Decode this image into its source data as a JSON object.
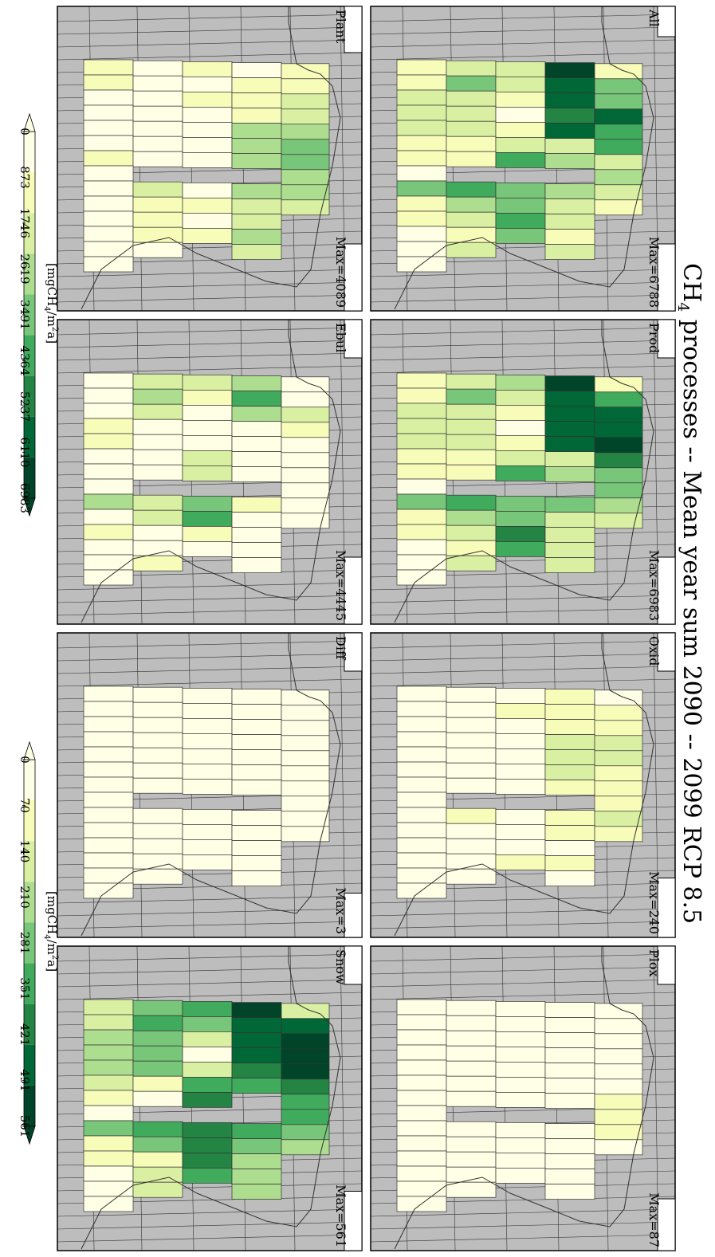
{
  "title": "CH₄ processes -- Mean year sum 2090 -- 2099 RCP 8.5",
  "title_parts": {
    "pre": "CH",
    "sub": "4",
    "post": " processes -- Mean year sum 2090 -- 2099 RCP 8.5"
  },
  "colors": {
    "ocean": "#bdbdbd",
    "frame": "#000000",
    "grid": "#333333",
    "ramp": [
      "#ffffe5",
      "#f7fcb9",
      "#d9f0a3",
      "#addd8e",
      "#78c679",
      "#41ab5d",
      "#238443",
      "#006837",
      "#004529"
    ]
  },
  "chart_data": [
    {
      "type": "heatmap",
      "panels": [
        {
          "name": "All",
          "max_label": "Max=6788",
          "max": 6788,
          "scale": "a",
          "grid": [
            [
              1400,
              2200,
              1800,
              6400,
              800
            ],
            [
              1500,
              3700,
              2100,
              5600,
              3300
            ],
            [
              2000,
              2300,
              1500,
              5500,
              3200
            ],
            [
              1900,
              2000,
              600,
              5200,
              5900
            ],
            [
              1800,
              2100,
              1000,
              5700,
              4500
            ],
            [
              1500,
              1200,
              1800,
              2300,
              4400
            ],
            [
              1000,
              800,
              4500,
              2800,
              2100
            ],
            [
              500,
              null,
              null,
              null,
              2800
            ],
            [
              3400,
              4600,
              3700,
              3100,
              2200
            ],
            [
              1200,
              2400,
              3500,
              1800,
              1500
            ],
            [
              1000,
              1900,
              4200,
              2000,
              null
            ],
            [
              500,
              1100,
              3200,
              1500,
              null
            ],
            [
              400,
              1700,
              null,
              1700,
              null
            ],
            [
              300,
              null,
              null,
              null,
              null
            ]
          ]
        },
        {
          "name": "Prod",
          "max_label": "Max=6983",
          "max": 6983,
          "scale": "a",
          "grid": [
            [
              1400,
              2200,
              3100,
              6900,
              1500
            ],
            [
              1500,
              3700,
              2100,
              6000,
              4600
            ],
            [
              2000,
              2300,
              1500,
              5600,
              5900
            ],
            [
              1900,
              2000,
              600,
              5500,
              6100
            ],
            [
              1800,
              2100,
              1000,
              5700,
              6300
            ],
            [
              1500,
              1200,
              1800,
              2300,
              4900
            ],
            [
              1000,
              800,
              4500,
              3000,
              3700
            ],
            [
              500,
              null,
              null,
              null,
              3300
            ],
            [
              3400,
              4600,
              3700,
              3200,
              2700
            ],
            [
              1200,
              2400,
              3500,
              1900,
              1700
            ],
            [
              1000,
              1900,
              4800,
              2000,
              null
            ],
            [
              500,
              1100,
              4300,
              1600,
              null
            ],
            [
              400,
              1700,
              null,
              1700,
              null
            ],
            [
              300,
              null,
              null,
              null,
              null
            ]
          ]
        },
        {
          "name": "Oxid",
          "max_label": "Max=240",
          "max": 240,
          "scale": "b",
          "grid": [
            [
              40,
              25,
              60,
              70,
              60
            ],
            [
              50,
              30,
              70,
              90,
              70
            ],
            [
              45,
              30,
              60,
              100,
              120
            ],
            [
              40,
              35,
              45,
              140,
              150
            ],
            [
              35,
              40,
              35,
              150,
              150
            ],
            [
              30,
              60,
              25,
              170,
              120
            ],
            [
              20,
              35,
              25,
              110,
              100
            ],
            [
              15,
              null,
              null,
              null,
              100
            ],
            [
              45,
              90,
              40,
              100,
              130
            ],
            [
              60,
              60,
              20,
              90,
              90
            ],
            [
              35,
              40,
              30,
              60,
              null
            ],
            [
              20,
              25,
              80,
              80,
              null
            ],
            [
              15,
              20,
              null,
              60,
              null
            ],
            [
              10,
              null,
              null,
              null,
              null
            ]
          ]
        },
        {
          "name": "Plant",
          "max_label": "Max=4089",
          "max": 4089,
          "scale": "a",
          "grid": [
            [
              800,
              300,
              900,
              600,
              1200
            ],
            [
              1000,
              400,
              700,
              1100,
              1500
            ],
            [
              600,
              350,
              1500,
              1300,
              1900
            ],
            [
              500,
              400,
              600,
              900,
              2300
            ],
            [
              450,
              450,
              450,
              2400,
              2800
            ],
            [
              400,
              700,
              400,
              2600,
              3500
            ],
            [
              1100,
              300,
              300,
              2800,
              3600
            ],
            [
              350,
              null,
              null,
              null,
              2700
            ],
            [
              300,
              1800,
              500,
              2600,
              2400
            ],
            [
              250,
              1200,
              1300,
              2200,
              2000
            ],
            [
              200,
              1000,
              700,
              2100,
              null
            ],
            [
              150,
              900,
              1500,
              2600,
              null
            ],
            [
              150,
              600,
              null,
              2200,
              null
            ],
            [
              100,
              null,
              null,
              null,
              null
            ]
          ]
        },
        {
          "name": "Ebul",
          "max_label": "Max=4445",
          "max": 4445,
          "scale": "a",
          "grid": [
            [
              300,
              2300,
              1900,
              2500,
              600
            ],
            [
              400,
              2800,
              900,
              4400,
              700
            ],
            [
              600,
              2000,
              400,
              2400,
              1800
            ],
            [
              1200,
              700,
              600,
              400,
              800
            ],
            [
              1500,
              700,
              400,
              500,
              300
            ],
            [
              500,
              200,
              2000,
              300,
              200
            ],
            [
              300,
              400,
              2200,
              500,
              200
            ],
            [
              200,
              null,
              null,
              null,
              300
            ],
            [
              2500,
              2000,
              3700,
              900,
              200
            ],
            [
              400,
              2000,
              3900,
              500,
              200
            ],
            [
              1100,
              400,
              800,
              300,
              null
            ],
            [
              500,
              500,
              200,
              200,
              null
            ],
            [
              300,
              1000,
              null,
              200,
              null
            ],
            [
              200,
              null,
              null,
              null,
              null
            ]
          ]
        },
        {
          "name": "Diff",
          "max_label": "Max=3",
          "max": 3,
          "scale": "b",
          "grid": [
            [
              1,
              1,
              1,
              1,
              1
            ],
            [
              1,
              1,
              1,
              1,
              1
            ],
            [
              1,
              1,
              1,
              1,
              1
            ],
            [
              1,
              1,
              1,
              1,
              1
            ],
            [
              1,
              1,
              1,
              1,
              1
            ],
            [
              1,
              1,
              1,
              1,
              1
            ],
            [
              1,
              1,
              1,
              1,
              1
            ],
            [
              1,
              null,
              null,
              null,
              1
            ],
            [
              1,
              1,
              1,
              1,
              1
            ],
            [
              1,
              1,
              1,
              1,
              1
            ],
            [
              1,
              1,
              1,
              1,
              null
            ],
            [
              1,
              1,
              1,
              1,
              null
            ],
            [
              1,
              1,
              null,
              1,
              null
            ],
            [
              1,
              null,
              null,
              null,
              null
            ]
          ]
        },
        {
          "name": "Plox",
          "max_label": "Max=87",
          "max": 87,
          "scale": "b",
          "grid": [
            [
              6,
              10,
              15,
              30,
              35
            ],
            [
              8,
              12,
              20,
              40,
              40
            ],
            [
              10,
              14,
              22,
              45,
              50
            ],
            [
              10,
              15,
              20,
              50,
              55
            ],
            [
              12,
              15,
              18,
              55,
              60
            ],
            [
              10,
              20,
              15,
              60,
              60
            ],
            [
              8,
              15,
              15,
              60,
              70
            ],
            [
              6,
              null,
              null,
              null,
              75
            ],
            [
              10,
              20,
              15,
              50,
              65
            ],
            [
              8,
              20,
              15,
              45,
              60
            ],
            [
              6,
              12,
              20,
              40,
              null
            ],
            [
              4,
              10,
              25,
              45,
              null
            ],
            [
              3,
              12,
              null,
              40,
              null
            ],
            [
              2,
              null,
              null,
              null,
              null
            ]
          ]
        },
        {
          "name": "Snow",
          "max_label": "Max=561",
          "max": 561,
          "scale": "b",
          "grid": [
            [
              160,
              270,
              330,
              530,
              140
            ],
            [
              170,
              360,
              260,
              480,
              470
            ],
            [
              200,
              280,
              170,
              460,
              500
            ],
            [
              200,
              260,
              50,
              460,
              510
            ],
            [
              190,
              260,
              180,
              390,
              520
            ],
            [
              160,
              110,
              340,
              350,
              380
            ],
            [
              90,
              40,
              390,
              null,
              330
            ],
            [
              60,
              null,
              null,
              null,
              330
            ],
            [
              280,
              350,
              380,
              330,
              270
            ],
            [
              100,
              260,
              380,
              280,
              200
            ],
            [
              70,
              80,
              400,
              240,
              null
            ],
            [
              40,
              160,
              330,
              210,
              null
            ],
            [
              30,
              170,
              null,
              200,
              null
            ],
            [
              20,
              null,
              null,
              null,
              null
            ]
          ]
        }
      ],
      "colorbars": [
        {
          "id": "a",
          "unit_pre": "[mgCH",
          "unit_sub": "4",
          "unit_mid": "/m",
          "unit_sup": "2",
          "unit_post": "a]",
          "ticks": [
            "0",
            "873",
            "1746",
            "2619",
            "3491",
            "4364",
            "5237",
            "6110",
            "6983"
          ],
          "range": [
            0,
            6983
          ],
          "extend": "both"
        },
        {
          "id": "b",
          "unit_pre": "[mgCH",
          "unit_sub": "4",
          "unit_mid": "/m",
          "unit_sup": "2",
          "unit_post": "a]",
          "ticks": [
            "0",
            "70",
            "140",
            "210",
            "281",
            "351",
            "421",
            "491",
            "561"
          ],
          "range": [
            0,
            561
          ],
          "extend": "both"
        }
      ]
    }
  ]
}
